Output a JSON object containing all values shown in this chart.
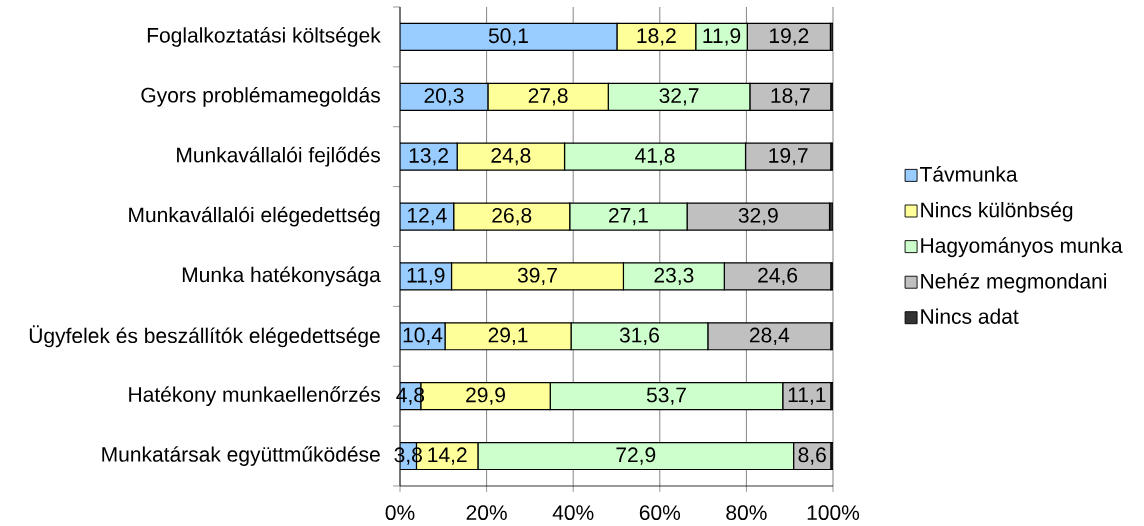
{
  "chart_data": {
    "type": "bar",
    "orientation": "horizontal",
    "stacked": true,
    "categories": [
      "Foglalkoztatási költségek",
      "Gyors problémamegoldás",
      "Munkavállalói fejlődés",
      "Munkavállalói elégedettség",
      "Munka hatékonysága",
      "Ügyfelek és beszállítók elégedettsége",
      "Hatékony munkaellenőrzés",
      "Munkatársak együttműködése"
    ],
    "series": [
      {
        "name": "Távmunka",
        "color": "#99ccff",
        "values": [
          50.1,
          20.3,
          13.2,
          12.4,
          11.9,
          10.4,
          4.8,
          3.8
        ],
        "value_labels": [
          "50,1",
          "20,3",
          "13,2",
          "12,4",
          "11,9",
          "10,4",
          "4,8",
          "3,8"
        ]
      },
      {
        "name": "Nincs különbség",
        "color": "#ffff99",
        "values": [
          18.2,
          27.8,
          24.8,
          26.8,
          39.7,
          29.1,
          29.9,
          14.2
        ],
        "value_labels": [
          "18,2",
          "27,8",
          "24,8",
          "26,8",
          "39,7",
          "29,1",
          "29,9",
          "14,2"
        ]
      },
      {
        "name": "Hagyományos munka",
        "color": "#ccffcc",
        "values": [
          11.9,
          32.7,
          41.8,
          27.1,
          23.3,
          31.6,
          53.7,
          72.9
        ],
        "value_labels": [
          "11,9",
          "32,7",
          "41,8",
          "27,1",
          "23,3",
          "31,6",
          "53,7",
          "72,9"
        ]
      },
      {
        "name": "Nehéz megmondani",
        "color": "#c0c0c0",
        "values": [
          19.2,
          18.7,
          19.7,
          32.9,
          24.6,
          28.4,
          11.1,
          8.6
        ],
        "value_labels": [
          "19,2",
          "18,7",
          "19,7",
          "32,9",
          "24,6",
          "28,4",
          "11,1",
          "8,6"
        ]
      },
      {
        "name": "Nincs adat",
        "color": "#333333",
        "values": [
          0.6,
          0.5,
          0.5,
          0.8,
          0.5,
          0.5,
          0.5,
          0.5
        ]
      }
    ],
    "xlim": [
      0,
      100
    ],
    "xticks": [
      {
        "value": 0,
        "label": "0%"
      },
      {
        "value": 20,
        "label": "20%"
      },
      {
        "value": 40,
        "label": "40%"
      },
      {
        "value": 60,
        "label": "60%"
      },
      {
        "value": 80,
        "label": "80%"
      },
      {
        "value": 100,
        "label": "100%"
      }
    ],
    "grid": "x",
    "legend": "right"
  }
}
